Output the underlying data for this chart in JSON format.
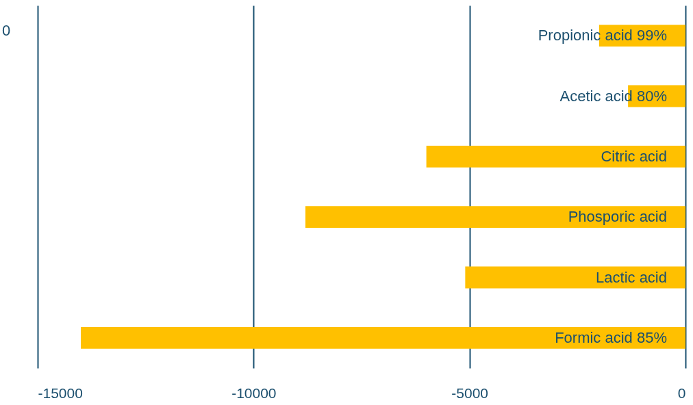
{
  "chart_data": {
    "type": "bar",
    "orientation": "horizontal",
    "categories": [
      "Propionic acid 99%",
      "Acetic acid 80%",
      "Citric acid",
      "Phosporic acid",
      "Lactic acid",
      "Formic acid 85%"
    ],
    "values": [
      -2000,
      -1330,
      -6000,
      -8800,
      -5100,
      -14000
    ],
    "color": "#ffc000",
    "xlim": [
      -15000,
      0
    ],
    "xticks": [
      -15000,
      -10000,
      -5000,
      0
    ],
    "grid": "x",
    "annotations": [
      "0"
    ]
  }
}
